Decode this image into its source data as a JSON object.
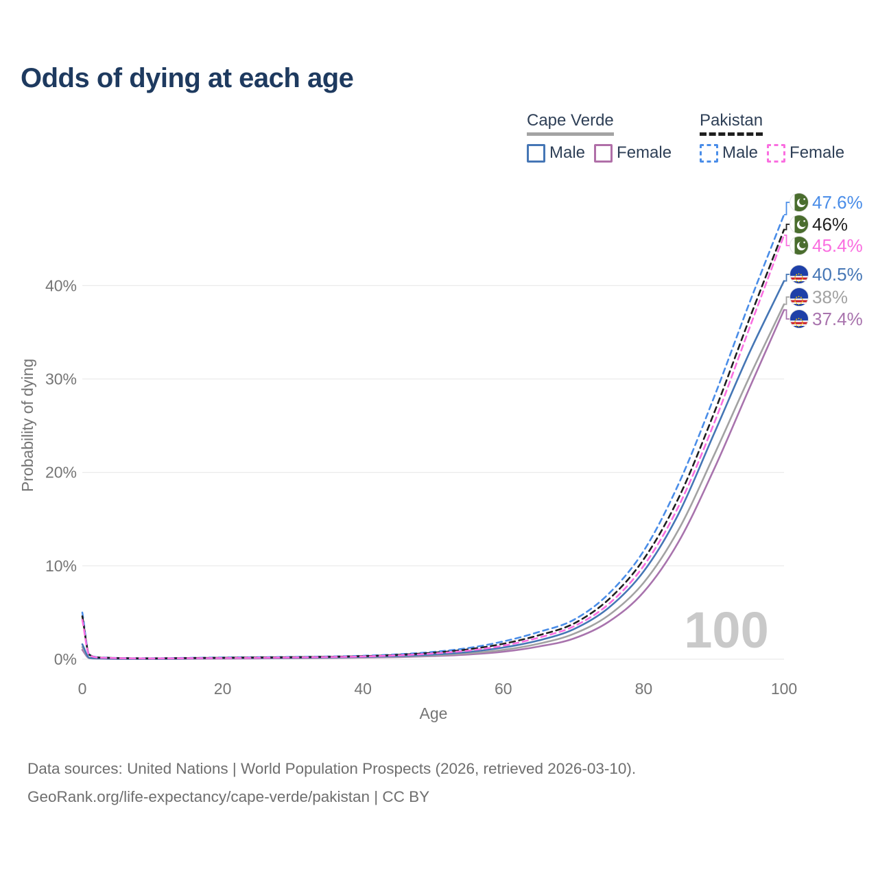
{
  "title": "Odds of dying at each age",
  "legend": {
    "groups": [
      {
        "name": "Cape Verde",
        "line_style": "solid",
        "line_color": "#a3a3a3",
        "items": [
          {
            "label": "Male",
            "color": "#4576b5",
            "dashed": false
          },
          {
            "label": "Female",
            "color": "#b06fa8",
            "dashed": false
          }
        ]
      },
      {
        "name": "Pakistan",
        "line_style": "dashed",
        "line_color": "#1f1f1f",
        "items": [
          {
            "label": "Male",
            "color": "#4a8de8",
            "dashed": true
          },
          {
            "label": "Female",
            "color": "#fa6ee0",
            "dashed": true
          }
        ]
      }
    ]
  },
  "end_labels": [
    {
      "text": "47.6%",
      "color": "#4a8de8",
      "flag": "pakistan"
    },
    {
      "text": "46%",
      "color": "#1f1f1f",
      "flag": "pakistan"
    },
    {
      "text": "45.4%",
      "color": "#fa6ee0",
      "flag": "pakistan"
    },
    {
      "text": "40.5%",
      "color": "#4576b5",
      "flag": "cape-verde"
    },
    {
      "text": "38%",
      "color": "#a2a2a2",
      "flag": "cape-verde"
    },
    {
      "text": "37.4%",
      "color": "#a873ad",
      "flag": "cape-verde"
    }
  ],
  "watermark": "100",
  "axes": {
    "x_axis_title": "Age",
    "y_axis_title": "Probability of dying",
    "x_ticks": [
      "0",
      "20",
      "40",
      "60",
      "80",
      "100"
    ],
    "x_tick_values": [
      0,
      20,
      40,
      60,
      80,
      100
    ],
    "y_ticks": [
      "0%",
      "10%",
      "20%",
      "30%",
      "40%"
    ],
    "y_tick_values": [
      0,
      10,
      20,
      30,
      40
    ],
    "x_range": [
      0,
      100
    ],
    "grid_color": "#ebebeb",
    "tick_text_color": "#757575"
  },
  "chart_data": {
    "type": "line",
    "title": "Odds of dying at each age",
    "xlabel": "Age",
    "ylabel": "Probability of dying",
    "x_ages": [
      0,
      1,
      3,
      5,
      10,
      15,
      20,
      25,
      30,
      35,
      40,
      45,
      50,
      55,
      60,
      65,
      70,
      75,
      80,
      85,
      90,
      95,
      100
    ],
    "y_unit": "percent",
    "series": [
      {
        "id": "pakistan-male",
        "name": "Pakistan Male",
        "country": "Pakistan",
        "sex": "Male",
        "color": "#4a8de8",
        "dashed": true,
        "end_label": "47.6%",
        "values": [
          5.0,
          0.5,
          0.18,
          0.13,
          0.1,
          0.14,
          0.18,
          0.21,
          0.24,
          0.29,
          0.37,
          0.52,
          0.78,
          1.2,
          1.9,
          2.9,
          4.2,
          7.0,
          11.6,
          18.8,
          28.0,
          38.0,
          47.6
        ]
      },
      {
        "id": "pakistan-both",
        "name": "Pakistan (both sexes)",
        "country": "Pakistan",
        "sex": "Both",
        "color": "#1f1f1f",
        "dashed": true,
        "end_label": "46%",
        "values": [
          4.6,
          0.47,
          0.16,
          0.12,
          0.09,
          0.12,
          0.15,
          0.18,
          0.21,
          0.26,
          0.33,
          0.46,
          0.69,
          1.05,
          1.65,
          2.55,
          3.8,
          6.4,
          10.7,
          17.3,
          26.3,
          36.3,
          46.0
        ]
      },
      {
        "id": "pakistan-female",
        "name": "Pakistan Female",
        "country": "Pakistan",
        "sex": "Female",
        "color": "#fa6ee0",
        "dashed": true,
        "end_label": "45.4%",
        "values": [
          4.2,
          0.44,
          0.15,
          0.11,
          0.08,
          0.1,
          0.12,
          0.15,
          0.18,
          0.23,
          0.29,
          0.41,
          0.61,
          0.92,
          1.45,
          2.3,
          3.5,
          5.9,
          10.0,
          16.4,
          25.2,
          35.3,
          45.4
        ]
      },
      {
        "id": "cape-verde-male",
        "name": "Cape Verde Male",
        "country": "Cape Verde",
        "sex": "Male",
        "color": "#4576b5",
        "dashed": false,
        "end_label": "40.5%",
        "values": [
          1.6,
          0.15,
          0.07,
          0.05,
          0.04,
          0.07,
          0.11,
          0.13,
          0.15,
          0.19,
          0.25,
          0.34,
          0.5,
          0.78,
          1.25,
          2.0,
          3.2,
          5.5,
          9.4,
          15.6,
          24.1,
          32.7,
          40.5
        ]
      },
      {
        "id": "cape-verde-both",
        "name": "Cape Verde (both sexes)",
        "country": "Cape Verde",
        "sex": "Both",
        "color": "#a2a2a2",
        "dashed": false,
        "end_label": "38%",
        "values": [
          1.3,
          0.12,
          0.06,
          0.04,
          0.03,
          0.06,
          0.09,
          0.11,
          0.13,
          0.16,
          0.21,
          0.28,
          0.41,
          0.63,
          1.0,
          1.65,
          2.7,
          4.7,
          8.2,
          13.9,
          21.8,
          30.1,
          38.0
        ]
      },
      {
        "id": "cape-verde-female",
        "name": "Cape Verde Female",
        "country": "Cape Verde",
        "sex": "Female",
        "color": "#a873ad",
        "dashed": false,
        "end_label": "37.4%",
        "values": [
          1.0,
          0.1,
          0.05,
          0.03,
          0.03,
          0.04,
          0.06,
          0.08,
          0.1,
          0.13,
          0.17,
          0.23,
          0.33,
          0.5,
          0.8,
          1.35,
          2.2,
          4.0,
          7.2,
          12.6,
          20.3,
          28.9,
          37.4
        ]
      }
    ],
    "legend_position": "top-right",
    "grid": "horizontal"
  },
  "flag_colors": {
    "pakistan_green": "#4a6d2e",
    "cape_verde_blue": "#1e40a8",
    "cape_verde_red": "#cf2027",
    "cape_verde_yellow": "#ffd200"
  },
  "footer": {
    "line1": "Data sources: United Nations | World Population Prospects (2026, retrieved 2026-03-10).",
    "line2": "GeoRank.org/life-expectancy/cape-verde/pakistan | CC BY"
  }
}
